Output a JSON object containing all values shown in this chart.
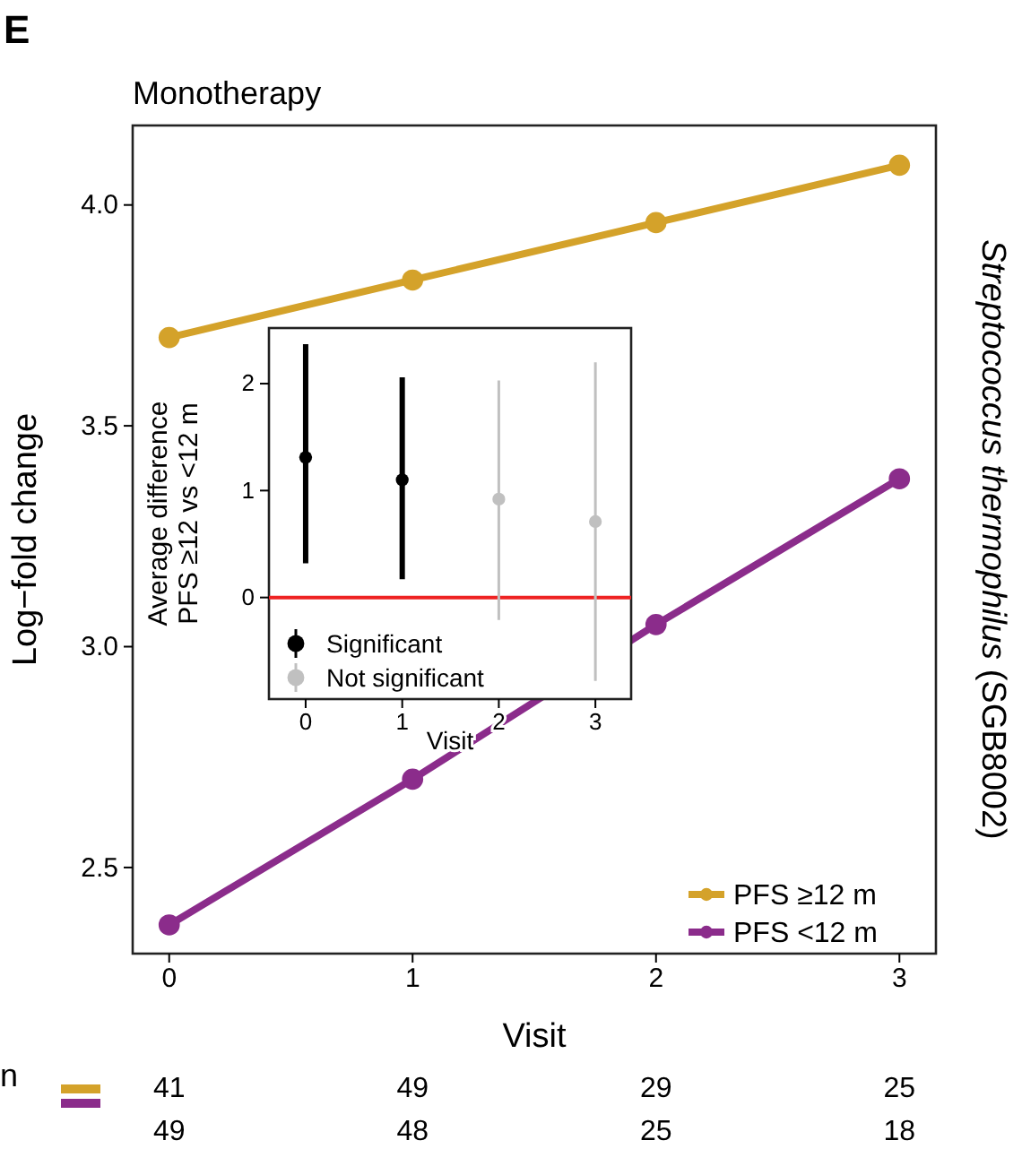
{
  "chart_data": [
    {
      "type": "line",
      "title": "Monotherapy",
      "xlabel": "Visit",
      "ylabel": "Log−fold change",
      "y2label": "Streptococcus thermophilus (SGB8002)",
      "x": [
        0,
        1,
        2,
        3
      ],
      "xlim": [
        -0.15,
        3.15
      ],
      "xticks": [
        0,
        1,
        2,
        3
      ],
      "ylim": [
        2.305,
        4.18
      ],
      "yticks": [
        {
          "value": 2.5,
          "label": "2.5"
        },
        {
          "value": 3,
          "label": "3.0"
        },
        {
          "value": 3.5,
          "label": "3.5"
        },
        {
          "value": 4,
          "label": "4.0"
        }
      ],
      "series": [
        {
          "name": "PFS ≥12 m",
          "color": "#d4a22a",
          "values": [
            3.7,
            3.83,
            3.96,
            4.09
          ]
        },
        {
          "name": "PFS <12 m",
          "color": "#8b2c8b",
          "values": [
            2.37,
            2.7,
            3.05,
            3.38
          ]
        }
      ],
      "marker": "circle",
      "line_style": "solid",
      "grid": false,
      "legend": "bottom right",
      "annotations": [
        "E",
        "n",
        "41",
        "49",
        "29",
        "25",
        "49",
        "48",
        "25",
        "18"
      ]
    },
    {
      "type": "scatter",
      "xlabel": "Visit",
      "ylabel": "Average difference\nPFS ≥12 vs <12 m",
      "xlim": [
        -0.38,
        3.37
      ],
      "xticks": [
        0,
        1,
        2,
        3
      ],
      "ylim": [
        -0.95,
        2.52
      ],
      "yticks": [
        0,
        1,
        2
      ],
      "series": [
        {
          "name": "Significant",
          "color": "#000000",
          "x": [
            0,
            1
          ],
          "values": [
            1.31,
            1.1
          ],
          "errors": [
            [
              0.32,
              2.37
            ],
            [
              0.17,
              2.06
            ]
          ]
        },
        {
          "name": "Not significant",
          "color": "#c0c0c0",
          "x": [
            2,
            3
          ],
          "values": [
            0.92,
            0.71
          ],
          "errors": [
            [
              -0.21,
              2.03
            ],
            [
              -0.78,
              2.2
            ]
          ]
        }
      ],
      "ref_lines": [
        {
          "axis": "y",
          "value": 0,
          "color": "#ee2222"
        }
      ],
      "marker": "circle",
      "grid": false,
      "legend": "bottom left"
    }
  ]
}
